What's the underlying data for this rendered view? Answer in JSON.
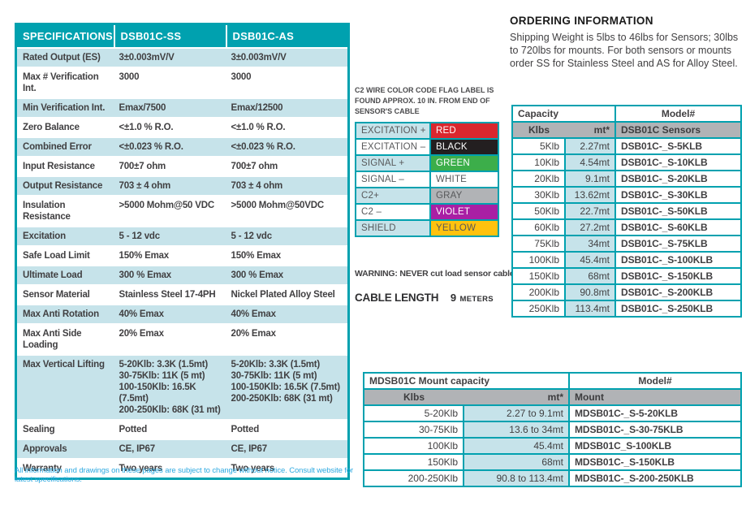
{
  "spec_table": {
    "headers": [
      "SPECIFICATIONS",
      "DSB01C-SS",
      "DSB01C-AS"
    ],
    "rows": [
      {
        "label": "Rated Output (ES)",
        "ss": "3±0.003mV/V",
        "as": "3±0.003mV/V"
      },
      {
        "label": "Max # Verification Int.",
        "ss": "3000",
        "as": "3000"
      },
      {
        "label": "Min Verification Int.",
        "ss": "Emax/7500",
        "as": "Emax/12500"
      },
      {
        "label": "Zero Balance",
        "ss": "<±1.0 % R.O.",
        "as": "<±1.0 % R.O."
      },
      {
        "label": "Combined Error",
        "ss": "<±0.023 % R.O.",
        "as": "<±0.023 % R.O."
      },
      {
        "label": "Input Resistance",
        "ss": "700±7 ohm",
        "as": "700±7 ohm"
      },
      {
        "label": "Output Resistance",
        "ss": "703 ± 4 ohm",
        "as": "703 ± 4 ohm"
      },
      {
        "label": "Insulation Resistance",
        "ss": ">5000 Mohm@50 VDC",
        "as": ">5000 Mohm@50VDC"
      },
      {
        "label": "Excitation",
        "ss": "5 - 12 vdc",
        "as": "5 - 12 vdc"
      },
      {
        "label": "Safe Load Limit",
        "ss": "150% Emax",
        "as": "150% Emax"
      },
      {
        "label": "Ultimate Load",
        "ss": "300 % Emax",
        "as": "300 % Emax"
      },
      {
        "label": "Sensor Material",
        "ss": "Stainless Steel 17-4PH",
        "as": "Nickel Plated Alloy Steel"
      },
      {
        "label": "Max Anti Rotation",
        "ss": "40% Emax",
        "as": "40% Emax"
      },
      {
        "label": "Max Anti Side Loading",
        "ss": "20% Emax",
        "as": "20% Emax"
      },
      {
        "label": "Max Vertical Lifting",
        "ss": "5-20Klb: 3.3K (1.5mt)\n30-75Klb: 11K (5 mt)\n100-150Klb: 16.5K (7.5mt)\n200-250Klb: 68K (31 mt)",
        "as": "5-20Klb: 3.3K (1.5mt)\n30-75Klb: 11K (5 mt)\n100-150Klb: 16.5K (7.5mt)\n200-250Klb: 68K (31 mt)"
      },
      {
        "label": "Sealing",
        "ss": "Potted",
        "as": "Potted"
      },
      {
        "label": "Approvals",
        "ss": "CE, IP67",
        "as": "CE, IP67"
      },
      {
        "label": "Warranty",
        "ss": "Two years",
        "as": "Two years"
      }
    ]
  },
  "wire": {
    "note": "C2 WIRE COLOR CODE FLAG LABEL IS FOUND APPROX. 10 IN. FROM END OF SENSOR'S CABLE",
    "rows": [
      {
        "signal": "EXCITATION +",
        "color_name": "RED",
        "hex": "#D9272E",
        "text": "#FFFFFF"
      },
      {
        "signal": "EXCITATION –",
        "color_name": "BLACK",
        "hex": "#231F20",
        "text": "#FFFFFF"
      },
      {
        "signal": "SIGNAL +",
        "color_name": "GREEN",
        "hex": "#3CAE4A",
        "text": "#FFFFFF"
      },
      {
        "signal": "SIGNAL  –",
        "color_name": "WHITE",
        "hex": "#FFFFFF",
        "text": "#58595B"
      },
      {
        "signal": "C2+",
        "color_name": "GRAY",
        "hex": "#B1B3B6",
        "text": "#58595B"
      },
      {
        "signal": "C2 –",
        "color_name": "VIOLET",
        "hex": "#A91FA4",
        "text": "#FFFFFF"
      },
      {
        "signal": "SHIELD",
        "color_name": "YELLOW",
        "hex": "#FFC20E",
        "text": "#58595B"
      }
    ],
    "warning": "WARNING: NEVER cut load sensor cable",
    "cable_label": "CABLE LENGTH",
    "cable_number": "9",
    "cable_unit": "METERS"
  },
  "ordering": {
    "title": "ORDERING INFORMATION",
    "body": "Shipping Weight is 5lbs to 46lbs for Sensors; 30lbs to 720lbs for mounts.  For both sensors or mounts order SS for Stainless Steel and AS for Alloy Steel."
  },
  "sensor_table": {
    "header_capacity": "Capacity",
    "header_model": "Model#",
    "sub_klbs": "Klbs",
    "sub_mt": "mt*",
    "sub_model": "DSB01C Sensors",
    "rows": [
      {
        "klb": "5Klb",
        "mt": "2.27mt",
        "model": "DSB01C-_S-5KLB"
      },
      {
        "klb": "10Klb",
        "mt": "4.54mt",
        "model": "DSB01C-_S-10KLB"
      },
      {
        "klb": "20Klb",
        "mt": "9.1mt",
        "model": "DSB01C-_S-20KLB"
      },
      {
        "klb": "30Klb",
        "mt": "13.62mt",
        "model": "DSB01C-_S-30KLB"
      },
      {
        "klb": "50Klb",
        "mt": "22.7mt",
        "model": "DSB01C-_S-50KLB"
      },
      {
        "klb": "60Klb",
        "mt": "27.2mt",
        "model": "DSB01C-_S-60KLB"
      },
      {
        "klb": "75Klb",
        "mt": "34mt",
        "model": "DSB01C-_S-75KLB"
      },
      {
        "klb": "100Klb",
        "mt": "45.4mt",
        "model": "DSB01C-_S-100KLB"
      },
      {
        "klb": "150Klb",
        "mt": "68mt",
        "model": "DSB01C-_S-150KLB"
      },
      {
        "klb": "200Klb",
        "mt": "90.8mt",
        "model": "DSB01C-_S-200KLB"
      },
      {
        "klb": "250Klb",
        "mt": "113.4mt",
        "model": "DSB01C-_S-250KLB"
      }
    ]
  },
  "mount_table": {
    "header_capacity": "MDSB01C Mount capacity",
    "header_model": "Model#",
    "sub_klbs": "Klbs",
    "sub_mt": "mt*",
    "sub_model": "Mount",
    "rows": [
      {
        "klb": "5-20Klb",
        "mt": "2.27 to 9.1mt",
        "model": "MDSB01C-_S-5-20KLB"
      },
      {
        "klb": "30-75Klb",
        "mt": "13.6 to 34mt",
        "model": "MDSB01C-_S-30-75KLB"
      },
      {
        "klb": "100Klb",
        "mt": "45.4mt",
        "model": "MDSB01C_S-100KLB"
      },
      {
        "klb": "150Klb",
        "mt": "68mt",
        "model": "MDSB01C-_S-150KLB"
      },
      {
        "klb": "200-250Klb",
        "mt": "90.8 to 113.4mt",
        "model": "MDSB01C-_S-200-250KLB"
      }
    ]
  },
  "footer": {
    "text": "All information and drawings on these pages are subject to change without notice.  Consult website for latest specifications."
  }
}
